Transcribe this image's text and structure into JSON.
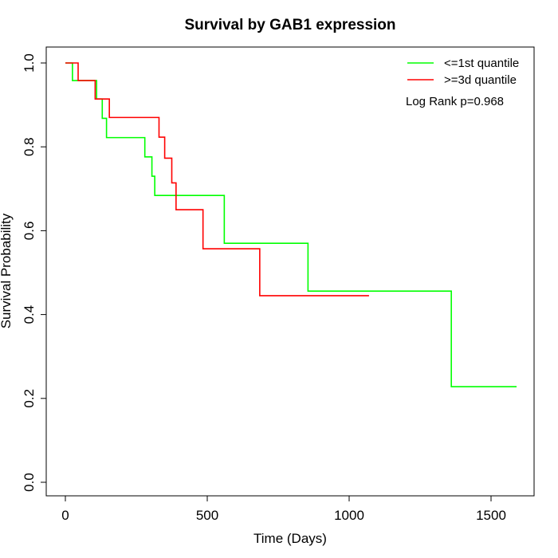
{
  "chart_data": {
    "type": "line",
    "title": "Survival by GAB1 expression",
    "xlabel": "Time (Days)",
    "ylabel": "Survival Probability",
    "xlim": [
      0,
      1650
    ],
    "ylim": [
      0,
      1.0
    ],
    "x_ticks": [
      0,
      500,
      1000,
      1500
    ],
    "y_ticks": [
      0.0,
      0.2,
      0.4,
      0.6,
      0.8,
      1.0
    ],
    "x_tick_labels": [
      "0",
      "500",
      "1000",
      "1500"
    ],
    "y_tick_labels": [
      "0.0",
      "0.2",
      "0.4",
      "0.6",
      "0.8",
      "1.0"
    ],
    "grid": false,
    "legend_position": "top-right",
    "annotation": "Log Rank p=0.968",
    "series": [
      {
        "name": "<=1st quantile",
        "color": "#00ff00",
        "step": true,
        "x": [
          0,
          25,
          110,
          130,
          145,
          280,
          305,
          315,
          560,
          855,
          1360,
          1590
        ],
        "y": [
          1.0,
          0.958,
          0.914,
          0.868,
          0.822,
          0.776,
          0.73,
          0.684,
          0.57,
          0.456,
          0.228,
          0.228
        ]
      },
      {
        "name": ">=3d quantile",
        "color": "#ff0000",
        "step": true,
        "x": [
          0,
          45,
          105,
          155,
          330,
          350,
          375,
          390,
          485,
          685,
          1070
        ],
        "y": [
          1.0,
          0.958,
          0.914,
          0.87,
          0.823,
          0.773,
          0.714,
          0.65,
          0.557,
          0.445,
          0.445
        ]
      }
    ]
  }
}
